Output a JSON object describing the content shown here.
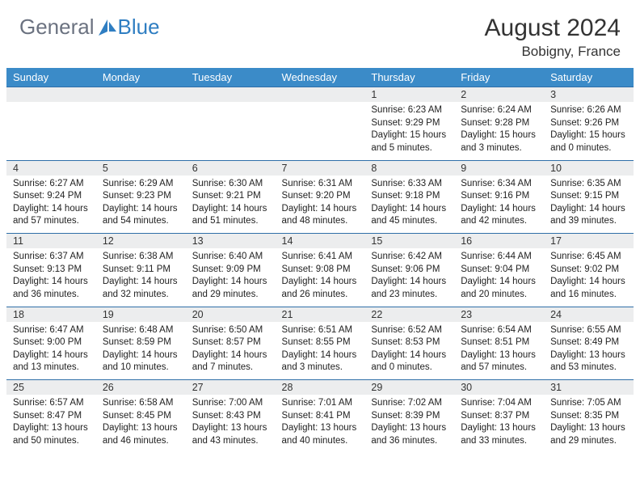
{
  "logo": {
    "text1": "General",
    "text2": "Blue"
  },
  "title": "August 2024",
  "location": "Bobigny, France",
  "colors": {
    "header_bg": "#3b8bc8",
    "daynum_bg": "#ecedee",
    "rule": "#2f6fa8",
    "logo_gray": "#6b7280",
    "logo_blue": "#2f7ec2"
  },
  "weekdays": [
    "Sunday",
    "Monday",
    "Tuesday",
    "Wednesday",
    "Thursday",
    "Friday",
    "Saturday"
  ],
  "weeks": [
    {
      "nums": [
        "",
        "",
        "",
        "",
        "1",
        "2",
        "3"
      ],
      "cells": [
        null,
        null,
        null,
        null,
        {
          "sunrise": "Sunrise: 6:23 AM",
          "sunset": "Sunset: 9:29 PM",
          "day1": "Daylight: 15 hours",
          "day2": "and 5 minutes."
        },
        {
          "sunrise": "Sunrise: 6:24 AM",
          "sunset": "Sunset: 9:28 PM",
          "day1": "Daylight: 15 hours",
          "day2": "and 3 minutes."
        },
        {
          "sunrise": "Sunrise: 6:26 AM",
          "sunset": "Sunset: 9:26 PM",
          "day1": "Daylight: 15 hours",
          "day2": "and 0 minutes."
        }
      ]
    },
    {
      "nums": [
        "4",
        "5",
        "6",
        "7",
        "8",
        "9",
        "10"
      ],
      "cells": [
        {
          "sunrise": "Sunrise: 6:27 AM",
          "sunset": "Sunset: 9:24 PM",
          "day1": "Daylight: 14 hours",
          "day2": "and 57 minutes."
        },
        {
          "sunrise": "Sunrise: 6:29 AM",
          "sunset": "Sunset: 9:23 PM",
          "day1": "Daylight: 14 hours",
          "day2": "and 54 minutes."
        },
        {
          "sunrise": "Sunrise: 6:30 AM",
          "sunset": "Sunset: 9:21 PM",
          "day1": "Daylight: 14 hours",
          "day2": "and 51 minutes."
        },
        {
          "sunrise": "Sunrise: 6:31 AM",
          "sunset": "Sunset: 9:20 PM",
          "day1": "Daylight: 14 hours",
          "day2": "and 48 minutes."
        },
        {
          "sunrise": "Sunrise: 6:33 AM",
          "sunset": "Sunset: 9:18 PM",
          "day1": "Daylight: 14 hours",
          "day2": "and 45 minutes."
        },
        {
          "sunrise": "Sunrise: 6:34 AM",
          "sunset": "Sunset: 9:16 PM",
          "day1": "Daylight: 14 hours",
          "day2": "and 42 minutes."
        },
        {
          "sunrise": "Sunrise: 6:35 AM",
          "sunset": "Sunset: 9:15 PM",
          "day1": "Daylight: 14 hours",
          "day2": "and 39 minutes."
        }
      ]
    },
    {
      "nums": [
        "11",
        "12",
        "13",
        "14",
        "15",
        "16",
        "17"
      ],
      "cells": [
        {
          "sunrise": "Sunrise: 6:37 AM",
          "sunset": "Sunset: 9:13 PM",
          "day1": "Daylight: 14 hours",
          "day2": "and 36 minutes."
        },
        {
          "sunrise": "Sunrise: 6:38 AM",
          "sunset": "Sunset: 9:11 PM",
          "day1": "Daylight: 14 hours",
          "day2": "and 32 minutes."
        },
        {
          "sunrise": "Sunrise: 6:40 AM",
          "sunset": "Sunset: 9:09 PM",
          "day1": "Daylight: 14 hours",
          "day2": "and 29 minutes."
        },
        {
          "sunrise": "Sunrise: 6:41 AM",
          "sunset": "Sunset: 9:08 PM",
          "day1": "Daylight: 14 hours",
          "day2": "and 26 minutes."
        },
        {
          "sunrise": "Sunrise: 6:42 AM",
          "sunset": "Sunset: 9:06 PM",
          "day1": "Daylight: 14 hours",
          "day2": "and 23 minutes."
        },
        {
          "sunrise": "Sunrise: 6:44 AM",
          "sunset": "Sunset: 9:04 PM",
          "day1": "Daylight: 14 hours",
          "day2": "and 20 minutes."
        },
        {
          "sunrise": "Sunrise: 6:45 AM",
          "sunset": "Sunset: 9:02 PM",
          "day1": "Daylight: 14 hours",
          "day2": "and 16 minutes."
        }
      ]
    },
    {
      "nums": [
        "18",
        "19",
        "20",
        "21",
        "22",
        "23",
        "24"
      ],
      "cells": [
        {
          "sunrise": "Sunrise: 6:47 AM",
          "sunset": "Sunset: 9:00 PM",
          "day1": "Daylight: 14 hours",
          "day2": "and 13 minutes."
        },
        {
          "sunrise": "Sunrise: 6:48 AM",
          "sunset": "Sunset: 8:59 PM",
          "day1": "Daylight: 14 hours",
          "day2": "and 10 minutes."
        },
        {
          "sunrise": "Sunrise: 6:50 AM",
          "sunset": "Sunset: 8:57 PM",
          "day1": "Daylight: 14 hours",
          "day2": "and 7 minutes."
        },
        {
          "sunrise": "Sunrise: 6:51 AM",
          "sunset": "Sunset: 8:55 PM",
          "day1": "Daylight: 14 hours",
          "day2": "and 3 minutes."
        },
        {
          "sunrise": "Sunrise: 6:52 AM",
          "sunset": "Sunset: 8:53 PM",
          "day1": "Daylight: 14 hours",
          "day2": "and 0 minutes."
        },
        {
          "sunrise": "Sunrise: 6:54 AM",
          "sunset": "Sunset: 8:51 PM",
          "day1": "Daylight: 13 hours",
          "day2": "and 57 minutes."
        },
        {
          "sunrise": "Sunrise: 6:55 AM",
          "sunset": "Sunset: 8:49 PM",
          "day1": "Daylight: 13 hours",
          "day2": "and 53 minutes."
        }
      ]
    },
    {
      "nums": [
        "25",
        "26",
        "27",
        "28",
        "29",
        "30",
        "31"
      ],
      "cells": [
        {
          "sunrise": "Sunrise: 6:57 AM",
          "sunset": "Sunset: 8:47 PM",
          "day1": "Daylight: 13 hours",
          "day2": "and 50 minutes."
        },
        {
          "sunrise": "Sunrise: 6:58 AM",
          "sunset": "Sunset: 8:45 PM",
          "day1": "Daylight: 13 hours",
          "day2": "and 46 minutes."
        },
        {
          "sunrise": "Sunrise: 7:00 AM",
          "sunset": "Sunset: 8:43 PM",
          "day1": "Daylight: 13 hours",
          "day2": "and 43 minutes."
        },
        {
          "sunrise": "Sunrise: 7:01 AM",
          "sunset": "Sunset: 8:41 PM",
          "day1": "Daylight: 13 hours",
          "day2": "and 40 minutes."
        },
        {
          "sunrise": "Sunrise: 7:02 AM",
          "sunset": "Sunset: 8:39 PM",
          "day1": "Daylight: 13 hours",
          "day2": "and 36 minutes."
        },
        {
          "sunrise": "Sunrise: 7:04 AM",
          "sunset": "Sunset: 8:37 PM",
          "day1": "Daylight: 13 hours",
          "day2": "and 33 minutes."
        },
        {
          "sunrise": "Sunrise: 7:05 AM",
          "sunset": "Sunset: 8:35 PM",
          "day1": "Daylight: 13 hours",
          "day2": "and 29 minutes."
        }
      ]
    }
  ]
}
